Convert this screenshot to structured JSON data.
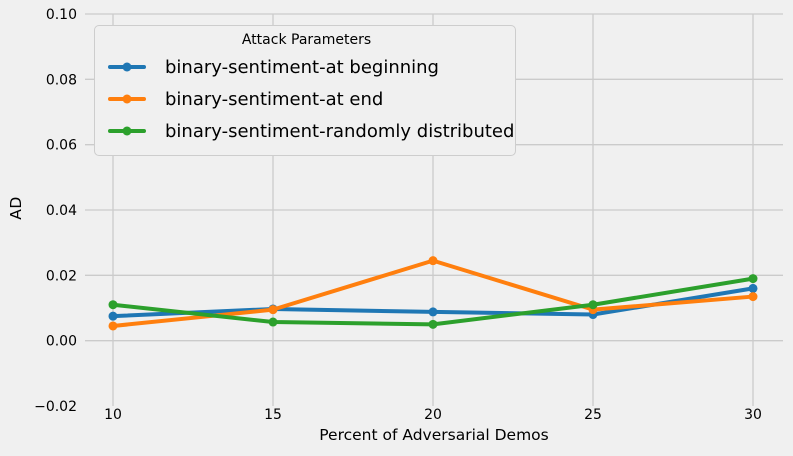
{
  "figure": {
    "background": "#f0f0f0",
    "grid_color": "#cbcbcb",
    "legend_border": "#cdcdcd",
    "text_color": "#000000"
  },
  "chart_data": {
    "type": "line",
    "title": "",
    "xlabel": "Percent of Adversarial Demos",
    "ylabel": "AD",
    "x": [
      10,
      15,
      20,
      25,
      30
    ],
    "x_tick_labels": [
      "10",
      "15",
      "20",
      "25",
      "30"
    ],
    "y_ticks": [
      -0.02,
      0.0,
      0.02,
      0.04,
      0.06,
      0.08,
      0.1
    ],
    "y_tick_labels": [
      "−0.02",
      "0.00",
      "0.02",
      "0.04",
      "0.06",
      "0.08",
      "0.10"
    ],
    "xlim": [
      9.125,
      30.9375
    ],
    "ylim": [
      -0.02,
      0.1
    ],
    "grid": true,
    "legend": {
      "title": "Attack Parameters",
      "position": "upper left"
    },
    "series": [
      {
        "name": "binary-sentiment-at beginning",
        "color": "#1f77b4",
        "values": [
          0.0075,
          0.0097,
          0.0088,
          0.008,
          0.016
        ]
      },
      {
        "name": "binary-sentiment-at end",
        "color": "#ff7f0e",
        "values": [
          0.0045,
          0.0095,
          0.0245,
          0.0095,
          0.0135
        ]
      },
      {
        "name": "binary-sentiment-randomly distributed",
        "color": "#2ca02c",
        "values": [
          0.011,
          0.0057,
          0.005,
          0.011,
          0.019
        ]
      }
    ]
  }
}
